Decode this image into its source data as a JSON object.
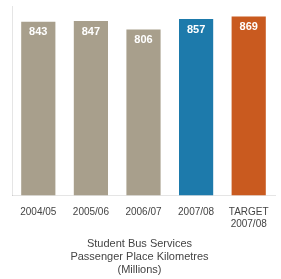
{
  "chart_data": {
    "type": "bar",
    "title": "Student Bus Services\nPassenger Place Kilometres\n(Millions)",
    "categories": [
      "2004/05",
      "2005/06",
      "2006/07",
      "2007/08",
      "TARGET\n2007/08"
    ],
    "values": [
      843,
      847,
      806,
      857,
      869
    ],
    "colors": [
      "#a89f8c",
      "#a89f8c",
      "#a89f8c",
      "#1d7aab",
      "#c95a1f"
    ],
    "ylim": [
      0,
      920
    ],
    "grid": false,
    "data_labels": true,
    "tick_labels": "x"
  }
}
